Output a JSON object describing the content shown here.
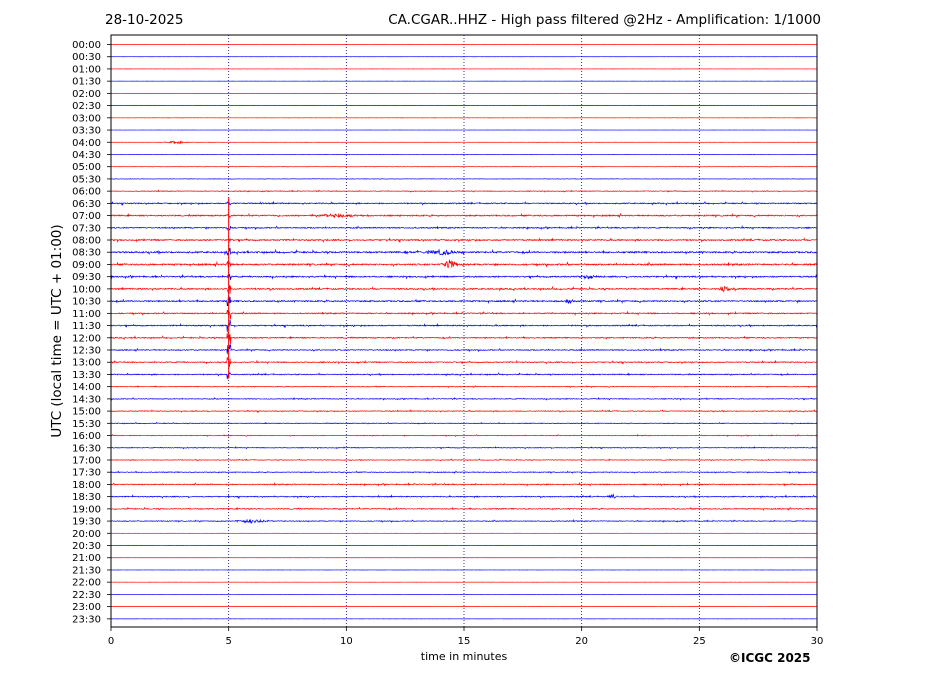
{
  "header": {
    "date": "28-10-2025",
    "title": "CA.CGAR..HHZ - High pass filtered @2Hz - Amplification: 1/1000"
  },
  "footer": {
    "copyright": "©ICGC 2025"
  },
  "colors": {
    "red_trace": "#ff0000",
    "blue_trace": "#0000ff",
    "grid": "#000080"
  },
  "chart_data": {
    "type": "line",
    "title": "CA.CGAR..HHZ - High pass filtered @2Hz - Amplification: 1/1000",
    "xlabel": "time in minutes",
    "ylabel": "UTC (local time = UTC + 01:00)",
    "xlim": [
      0,
      30
    ],
    "x_ticks": [
      0,
      5,
      10,
      15,
      20,
      25,
      30
    ],
    "x_tick_labels": [
      "0",
      "5",
      "10",
      "15",
      "20",
      "25",
      "30"
    ],
    "vertical_gridlines_at": [
      5,
      10,
      15,
      20,
      25
    ],
    "grid": "vertical dotted",
    "rows": [
      "00:00",
      "00:30",
      "01:00",
      "01:30",
      "02:00",
      "02:30",
      "03:00",
      "03:30",
      "04:00",
      "04:30",
      "05:00",
      "05:30",
      "06:00",
      "06:30",
      "07:00",
      "07:30",
      "08:00",
      "08:30",
      "09:00",
      "09:30",
      "10:00",
      "10:30",
      "11:00",
      "11:30",
      "12:00",
      "12:30",
      "13:00",
      "13:30",
      "14:00",
      "14:30",
      "15:00",
      "15:30",
      "16:00",
      "16:30",
      "17:00",
      "17:30",
      "18:00",
      "18:30",
      "19:00",
      "19:30",
      "20:00",
      "20:30",
      "21:00",
      "21:30",
      "22:00",
      "22:30",
      "23:00",
      "23:30"
    ],
    "row_colors": "alternating red/blue starting with red",
    "noise_level": [
      0.05,
      0.05,
      0.05,
      0.05,
      0.05,
      0.05,
      0.05,
      0.05,
      0.1,
      0.1,
      0.15,
      0.2,
      0.3,
      0.5,
      0.6,
      0.5,
      0.6,
      0.7,
      0.7,
      0.6,
      0.6,
      0.6,
      0.5,
      0.5,
      0.5,
      0.45,
      0.45,
      0.45,
      0.3,
      0.35,
      0.35,
      0.3,
      0.3,
      0.3,
      0.3,
      0.35,
      0.45,
      0.45,
      0.45,
      0.35,
      0.05,
      0.05,
      0.05,
      0.05,
      0.05,
      0.05,
      0.05,
      0.05
    ],
    "events": [
      {
        "row": "04:00",
        "minute": 2.8,
        "amplitude": 1.5,
        "duration": 0.8
      },
      {
        "row": "07:00",
        "minute": 9.5,
        "amplitude": 2,
        "duration": 2.5
      },
      {
        "row": "08:30",
        "minute": 14.0,
        "amplitude": 2.5,
        "duration": 1.5
      },
      {
        "row": "09:00",
        "minute": 14.4,
        "amplitude": 6,
        "duration": 0.5
      },
      {
        "row": "09:30",
        "minute": 20.3,
        "amplitude": 3,
        "duration": 0.6
      },
      {
        "row": "10:00",
        "minute": 26.1,
        "amplitude": 3,
        "duration": 0.5
      },
      {
        "row": "10:30",
        "minute": 19.5,
        "amplitude": 2.5,
        "duration": 0.4
      },
      {
        "row": "18:30",
        "minute": 21.3,
        "amplitude": 2,
        "duration": 0.4
      },
      {
        "row": "19:30",
        "minute": 6.0,
        "amplitude": 2,
        "duration": 1.5
      }
    ],
    "spike": {
      "minute": 5.0,
      "from_row": "06:30",
      "to_row": "13:30",
      "peak_row": "12:00"
    }
  }
}
